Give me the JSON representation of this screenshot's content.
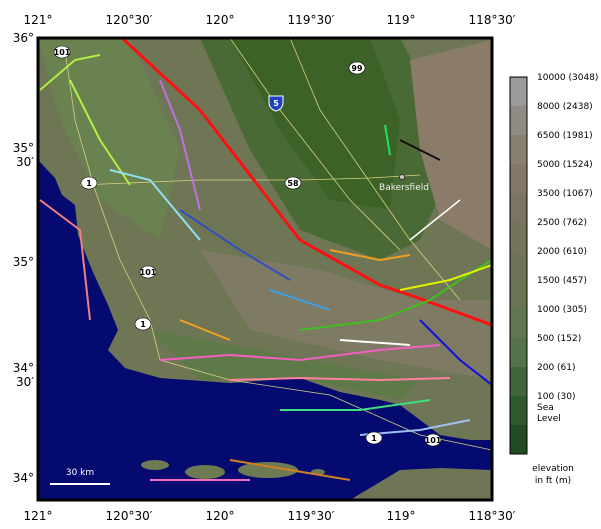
{
  "map": {
    "x_labels": [
      "121°",
      "120°30′",
      "120°",
      "119°30′",
      "119°",
      "118°30′"
    ],
    "y_labels": [
      [
        "36°"
      ],
      [
        "35°",
        "30′"
      ],
      [
        "35°"
      ],
      [
        "34°",
        "30′"
      ],
      [
        "34°"
      ]
    ],
    "highways": [
      "101",
      "99",
      "5",
      "58",
      "1",
      "101",
      "1",
      "1",
      "101"
    ],
    "city": "Bakersfield",
    "scale_bar": "30 km",
    "legend": {
      "entries": [
        "10000 (3048)",
        "8000 (2438)",
        "6500 (1981)",
        "5000 (1524)",
        "3500 (1067)",
        "2500 (762)",
        "2000 (610)",
        "1500 (457)",
        "1000 (305)",
        "500 (152)",
        "200 (61)",
        "100 (30)",
        "Sea",
        "Level"
      ],
      "title": [
        "elevation",
        "in ft (m)"
      ]
    }
  }
}
